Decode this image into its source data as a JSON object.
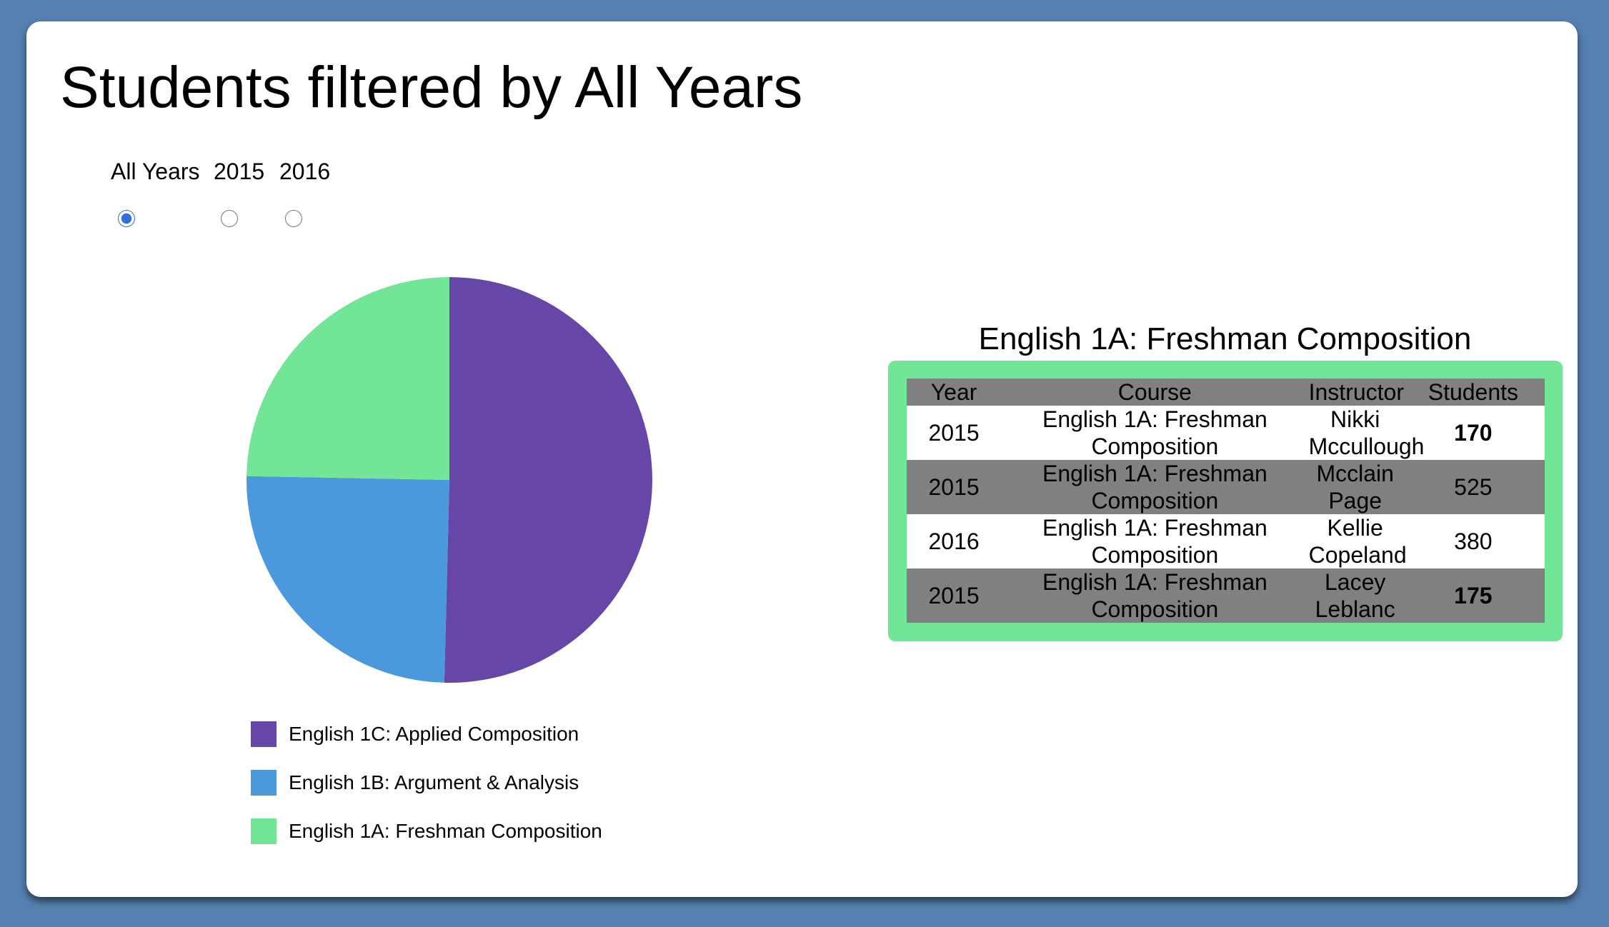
{
  "page": {
    "title": "Students filtered by All Years"
  },
  "filters": {
    "selected": "All Years",
    "options": [
      "All Years",
      "2015",
      "2016"
    ]
  },
  "colors": {
    "background": "#5580b0",
    "card": "#ffffff",
    "table_border": "#72e596",
    "row_gray": "#808080"
  },
  "chart_data": {
    "type": "pie",
    "title": "",
    "categories": [
      "English 1C: Applied Composition",
      "English 1B: Argument & Analysis",
      "English 1A: Freshman Composition"
    ],
    "values": [
      50.4,
      24.9,
      24.7
    ],
    "colors": [
      "#6646a6",
      "#4c98dc",
      "#72e596"
    ],
    "legend_position": "bottom"
  },
  "table": {
    "title": "English 1A: Freshman Composition",
    "headers": [
      "Year",
      "Course",
      "Instructor",
      "Students"
    ],
    "rows": [
      {
        "year": "2015",
        "course": "English 1A: Freshman Composition",
        "instructor": "Nikki Mccullough",
        "students": "170",
        "bold": true
      },
      {
        "year": "2015",
        "course": "English 1A: Freshman Composition",
        "instructor": "Mcclain Page",
        "students": "525",
        "bold": false
      },
      {
        "year": "2016",
        "course": "English 1A: Freshman Composition",
        "instructor": "Kellie Copeland",
        "students": "380",
        "bold": false
      },
      {
        "year": "2015",
        "course": "English 1A: Freshman Composition",
        "instructor": "Lacey Leblanc",
        "students": "175",
        "bold": true
      }
    ]
  }
}
